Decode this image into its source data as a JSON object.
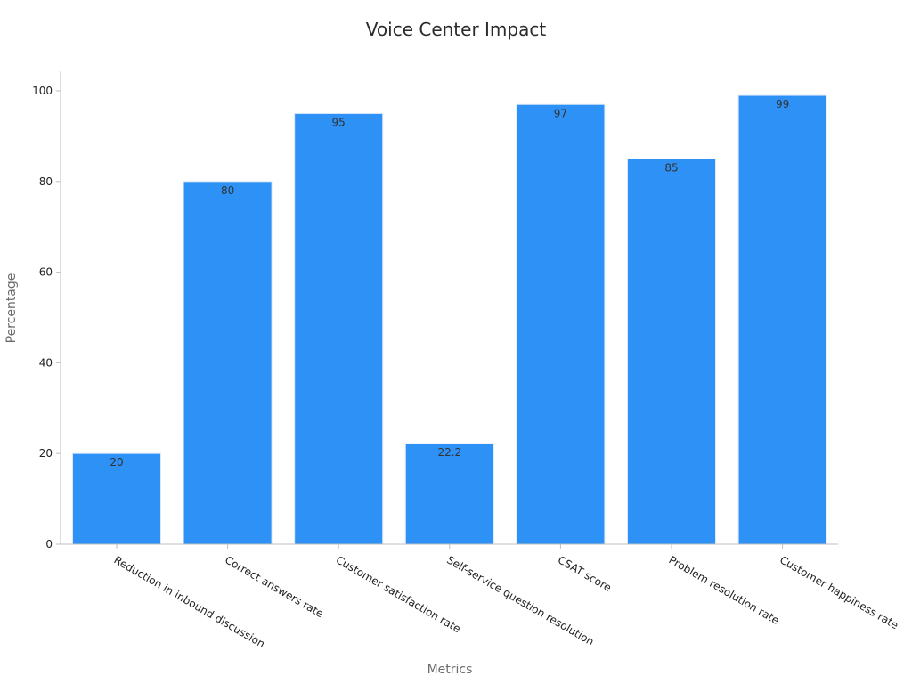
{
  "chart_data": {
    "type": "bar",
    "title": "Voice Center Impact",
    "xlabel": "Metrics",
    "ylabel": "Percentage",
    "categories": [
      "Reduction in inbound discussion",
      "Correct answers rate",
      "Customer satisfaction rate",
      "Self-service question resolution",
      "CSAT score",
      "Problem resolution rate",
      "Customer happiness rate"
    ],
    "values": [
      20,
      80,
      95,
      22.2,
      97,
      85,
      99
    ],
    "data_labels": [
      "20",
      "80",
      "95",
      "22.2",
      "97",
      "85",
      "99"
    ],
    "ylim": [
      0,
      104
    ],
    "yticks": [
      0,
      20,
      40,
      60,
      80,
      100
    ],
    "grid": false,
    "legend": "none",
    "colors": {
      "bar": "#2e91f6",
      "bar_edge": "#dbe8f8"
    }
  }
}
